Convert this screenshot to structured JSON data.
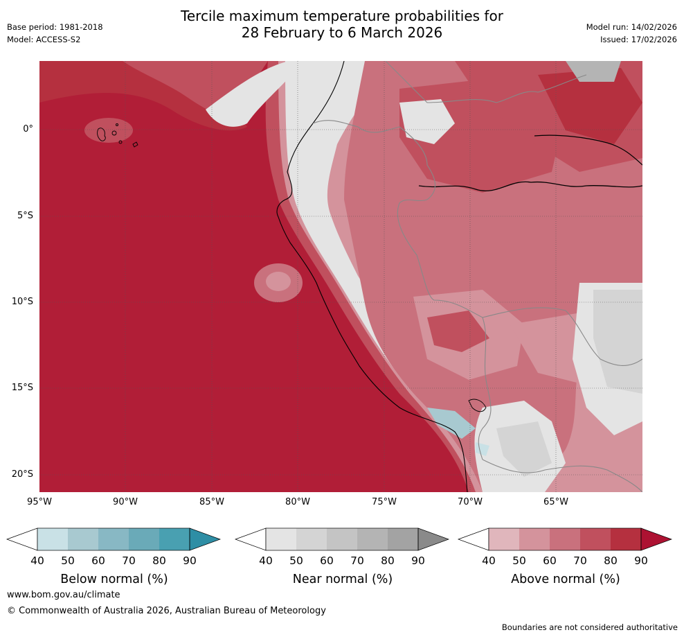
{
  "header": {
    "title_line1": "Tercile maximum temperature probabilities for",
    "title_line2": "28 February to 6 March 2026",
    "base_period": "Base period: 1981-2018",
    "model": "Model: ACCESS-S2",
    "model_run": "Model run: 14/02/2026",
    "issued": "Issued: 17/02/2026"
  },
  "map": {
    "lat_ticks": [
      "0°",
      "5°S",
      "10°S",
      "15°S",
      "20°S"
    ],
    "lon_ticks": [
      "95°W",
      "90°W",
      "85°W",
      "80°W",
      "75°W",
      "70°W",
      "65°W"
    ],
    "ocean_color": "#b11e37"
  },
  "legends": [
    {
      "title": "Below normal (%)",
      "labels": [
        "40",
        "50",
        "60",
        "70",
        "80",
        "90"
      ],
      "colors": [
        "#ffffff",
        "#c9e1e6",
        "#a8c9d0",
        "#88b8c4",
        "#6aaab8",
        "#49a0b1",
        "#2e8ea5"
      ]
    },
    {
      "title": "Near normal (%)",
      "labels": [
        "40",
        "50",
        "60",
        "70",
        "80",
        "90"
      ],
      "colors": [
        "#ffffff",
        "#e4e4e4",
        "#d4d4d4",
        "#c4c4c4",
        "#b4b4b4",
        "#a3a3a3",
        "#8a8a8a"
      ]
    },
    {
      "title": "Above normal (%)",
      "labels": [
        "40",
        "50",
        "60",
        "70",
        "80",
        "90"
      ],
      "colors": [
        "#ffffff",
        "#e0b6bc",
        "#d4939c",
        "#c9717d",
        "#c0505e",
        "#b5303f",
        "#ad1232"
      ]
    }
  ],
  "footer": {
    "link": "www.bom.gov.au/climate",
    "copyright": "© Commonwealth of Australia 2026, Australian Bureau of Meteorology",
    "note": "Boundaries are not considered authoritative"
  }
}
